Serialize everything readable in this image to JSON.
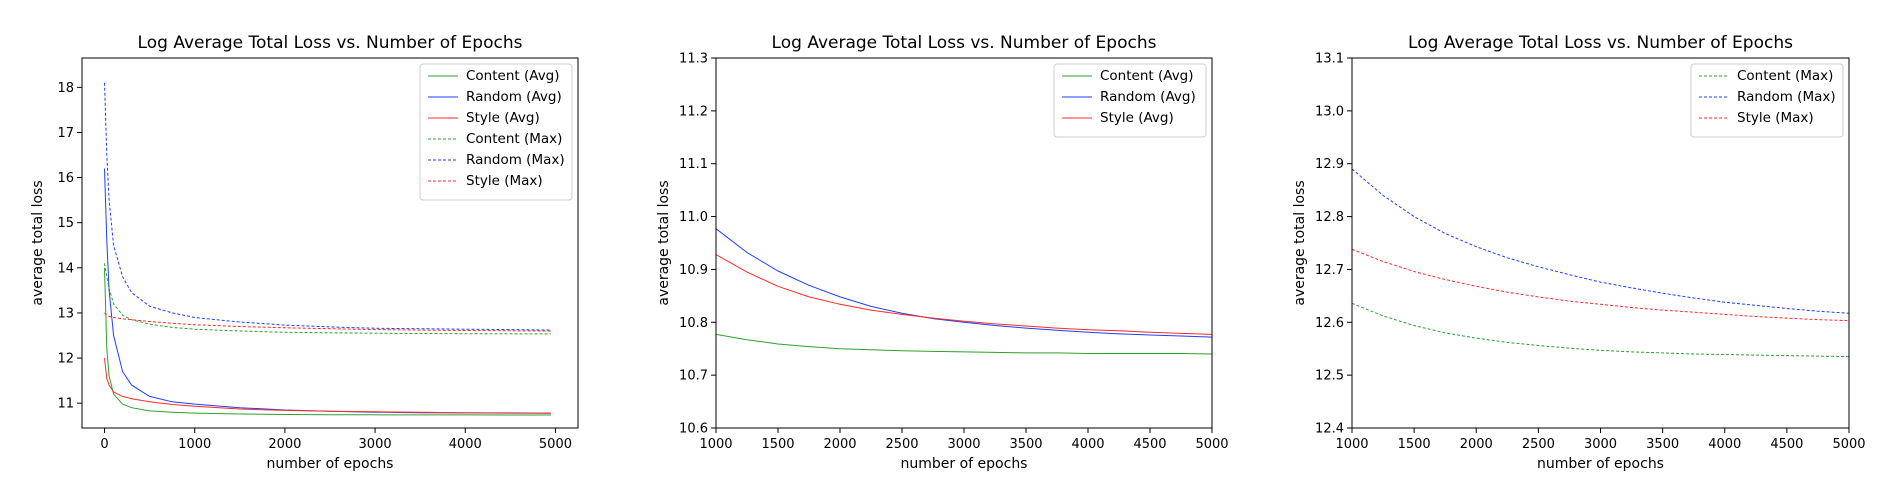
{
  "chart_data": [
    {
      "type": "line",
      "title": "Log Average Total Loss vs. Number of Epochs",
      "xlabel": "number of epochs",
      "ylabel": "average total loss",
      "xlim": [
        -250,
        5250
      ],
      "ylim": [
        10.45,
        18.65
      ],
      "xticks": [
        0,
        1000,
        2000,
        3000,
        4000,
        5000
      ],
      "yticks": [
        11,
        12,
        13,
        14,
        15,
        16,
        17,
        18
      ],
      "legend": "top-right",
      "grid": false,
      "x": [
        0,
        25,
        50,
        100,
        200,
        300,
        500,
        750,
        1000,
        1500,
        2000,
        2500,
        3000,
        3500,
        4000,
        4500,
        4950
      ],
      "series": [
        {
          "name": "Content (Avg)",
          "color": "#2ca02c",
          "dash": "solid",
          "values": [
            14.0,
            12.2,
            11.6,
            11.2,
            10.98,
            10.9,
            10.83,
            10.8,
            10.78,
            10.76,
            10.75,
            10.745,
            10.742,
            10.741,
            10.74,
            10.739,
            10.738
          ]
        },
        {
          "name": "Random (Avg)",
          "color": "#1f3fff",
          "dash": "solid",
          "values": [
            16.2,
            14.6,
            13.5,
            12.5,
            11.7,
            11.4,
            11.15,
            11.03,
            10.98,
            10.9,
            10.85,
            10.82,
            10.8,
            10.79,
            10.785,
            10.78,
            10.775
          ]
        },
        {
          "name": "Style (Avg)",
          "color": "#ff2a2a",
          "dash": "solid",
          "values": [
            12.0,
            11.55,
            11.4,
            11.25,
            11.15,
            11.1,
            11.03,
            10.97,
            10.93,
            10.87,
            10.84,
            10.82,
            10.81,
            10.8,
            10.79,
            10.785,
            10.78
          ]
        },
        {
          "name": "Content (Max)",
          "color": "#2ca02c",
          "dash": "dashed",
          "values": [
            14.1,
            13.8,
            13.55,
            13.2,
            12.95,
            12.85,
            12.75,
            12.68,
            12.64,
            12.6,
            12.57,
            12.56,
            12.55,
            12.545,
            12.54,
            12.538,
            12.535
          ]
        },
        {
          "name": "Random (Max)",
          "color": "#1f3fff",
          "dash": "dashed",
          "values": [
            18.1,
            16.5,
            15.5,
            14.5,
            13.8,
            13.45,
            13.15,
            13.0,
            12.9,
            12.8,
            12.73,
            12.69,
            12.66,
            12.65,
            12.64,
            12.63,
            12.62
          ]
        },
        {
          "name": "Style (Max)",
          "color": "#ff2a2a",
          "dash": "dashed",
          "values": [
            13.0,
            12.95,
            12.92,
            12.9,
            12.87,
            12.85,
            12.81,
            12.77,
            12.74,
            12.7,
            12.67,
            12.65,
            12.63,
            12.62,
            12.61,
            12.605,
            12.6
          ]
        }
      ]
    },
    {
      "type": "line",
      "title": "Log Average Total Loss vs. Number of Epochs",
      "xlabel": "number of epochs",
      "ylabel": "average total loss",
      "xlim": [
        1000,
        5000
      ],
      "ylim": [
        10.6,
        11.3
      ],
      "xticks": [
        1000,
        1500,
        2000,
        2500,
        3000,
        3500,
        4000,
        4500,
        5000
      ],
      "yticks": [
        10.6,
        10.7,
        10.8,
        10.9,
        11.0,
        11.1,
        11.2,
        11.3
      ],
      "legend": "top-right",
      "grid": false,
      "x": [
        1000,
        1250,
        1500,
        1750,
        2000,
        2250,
        2500,
        2750,
        3000,
        3250,
        3500,
        3750,
        4000,
        4250,
        4500,
        4750,
        5000
      ],
      "series": [
        {
          "name": "Content (Avg)",
          "color": "#2ca02c",
          "dash": "solid",
          "values": [
            10.777,
            10.767,
            10.759,
            10.754,
            10.75,
            10.748,
            10.746,
            10.745,
            10.744,
            10.743,
            10.742,
            10.742,
            10.741,
            10.741,
            10.741,
            10.741,
            10.74
          ]
        },
        {
          "name": "Random (Avg)",
          "color": "#1f3fff",
          "dash": "solid",
          "values": [
            10.977,
            10.932,
            10.897,
            10.87,
            10.848,
            10.83,
            10.817,
            10.807,
            10.8,
            10.794,
            10.789,
            10.785,
            10.781,
            10.778,
            10.776,
            10.774,
            10.772
          ]
        },
        {
          "name": "Style (Avg)",
          "color": "#ff2a2a",
          "dash": "solid",
          "values": [
            10.928,
            10.895,
            10.868,
            10.848,
            10.834,
            10.823,
            10.815,
            10.808,
            10.802,
            10.797,
            10.793,
            10.789,
            10.786,
            10.784,
            10.781,
            10.779,
            10.777
          ]
        }
      ]
    },
    {
      "type": "line",
      "title": "Log Average Total Loss vs. Number of Epochs",
      "xlabel": "number of epochs",
      "ylabel": "average total loss",
      "xlim": [
        1000,
        5000
      ],
      "ylim": [
        12.4,
        13.1
      ],
      "xticks": [
        1000,
        1500,
        2000,
        2500,
        3000,
        3500,
        4000,
        4500,
        5000
      ],
      "yticks": [
        12.4,
        12.5,
        12.6,
        12.7,
        12.8,
        12.9,
        13.0,
        13.1
      ],
      "legend": "top-right",
      "grid": false,
      "x": [
        1000,
        1250,
        1500,
        1750,
        2000,
        2250,
        2500,
        2750,
        3000,
        3250,
        3500,
        3750,
        4000,
        4250,
        4500,
        4750,
        5000
      ],
      "series": [
        {
          "name": "Content (Max)",
          "color": "#2ca02c",
          "dash": "dashed",
          "values": [
            12.636,
            12.612,
            12.594,
            12.58,
            12.57,
            12.562,
            12.556,
            12.551,
            12.547,
            12.544,
            12.542,
            12.54,
            12.539,
            12.538,
            12.537,
            12.536,
            12.535
          ]
        },
        {
          "name": "Random (Max)",
          "color": "#1f3fff",
          "dash": "dashed",
          "values": [
            12.89,
            12.84,
            12.8,
            12.768,
            12.743,
            12.722,
            12.705,
            12.69,
            12.676,
            12.665,
            12.655,
            12.646,
            12.638,
            12.632,
            12.626,
            12.621,
            12.617
          ]
        },
        {
          "name": "Style (Max)",
          "color": "#ff2a2a",
          "dash": "dashed",
          "values": [
            12.738,
            12.715,
            12.696,
            12.681,
            12.668,
            12.657,
            12.648,
            12.64,
            12.634,
            12.628,
            12.623,
            12.619,
            12.615,
            12.611,
            12.608,
            12.605,
            12.603
          ]
        }
      ]
    }
  ]
}
